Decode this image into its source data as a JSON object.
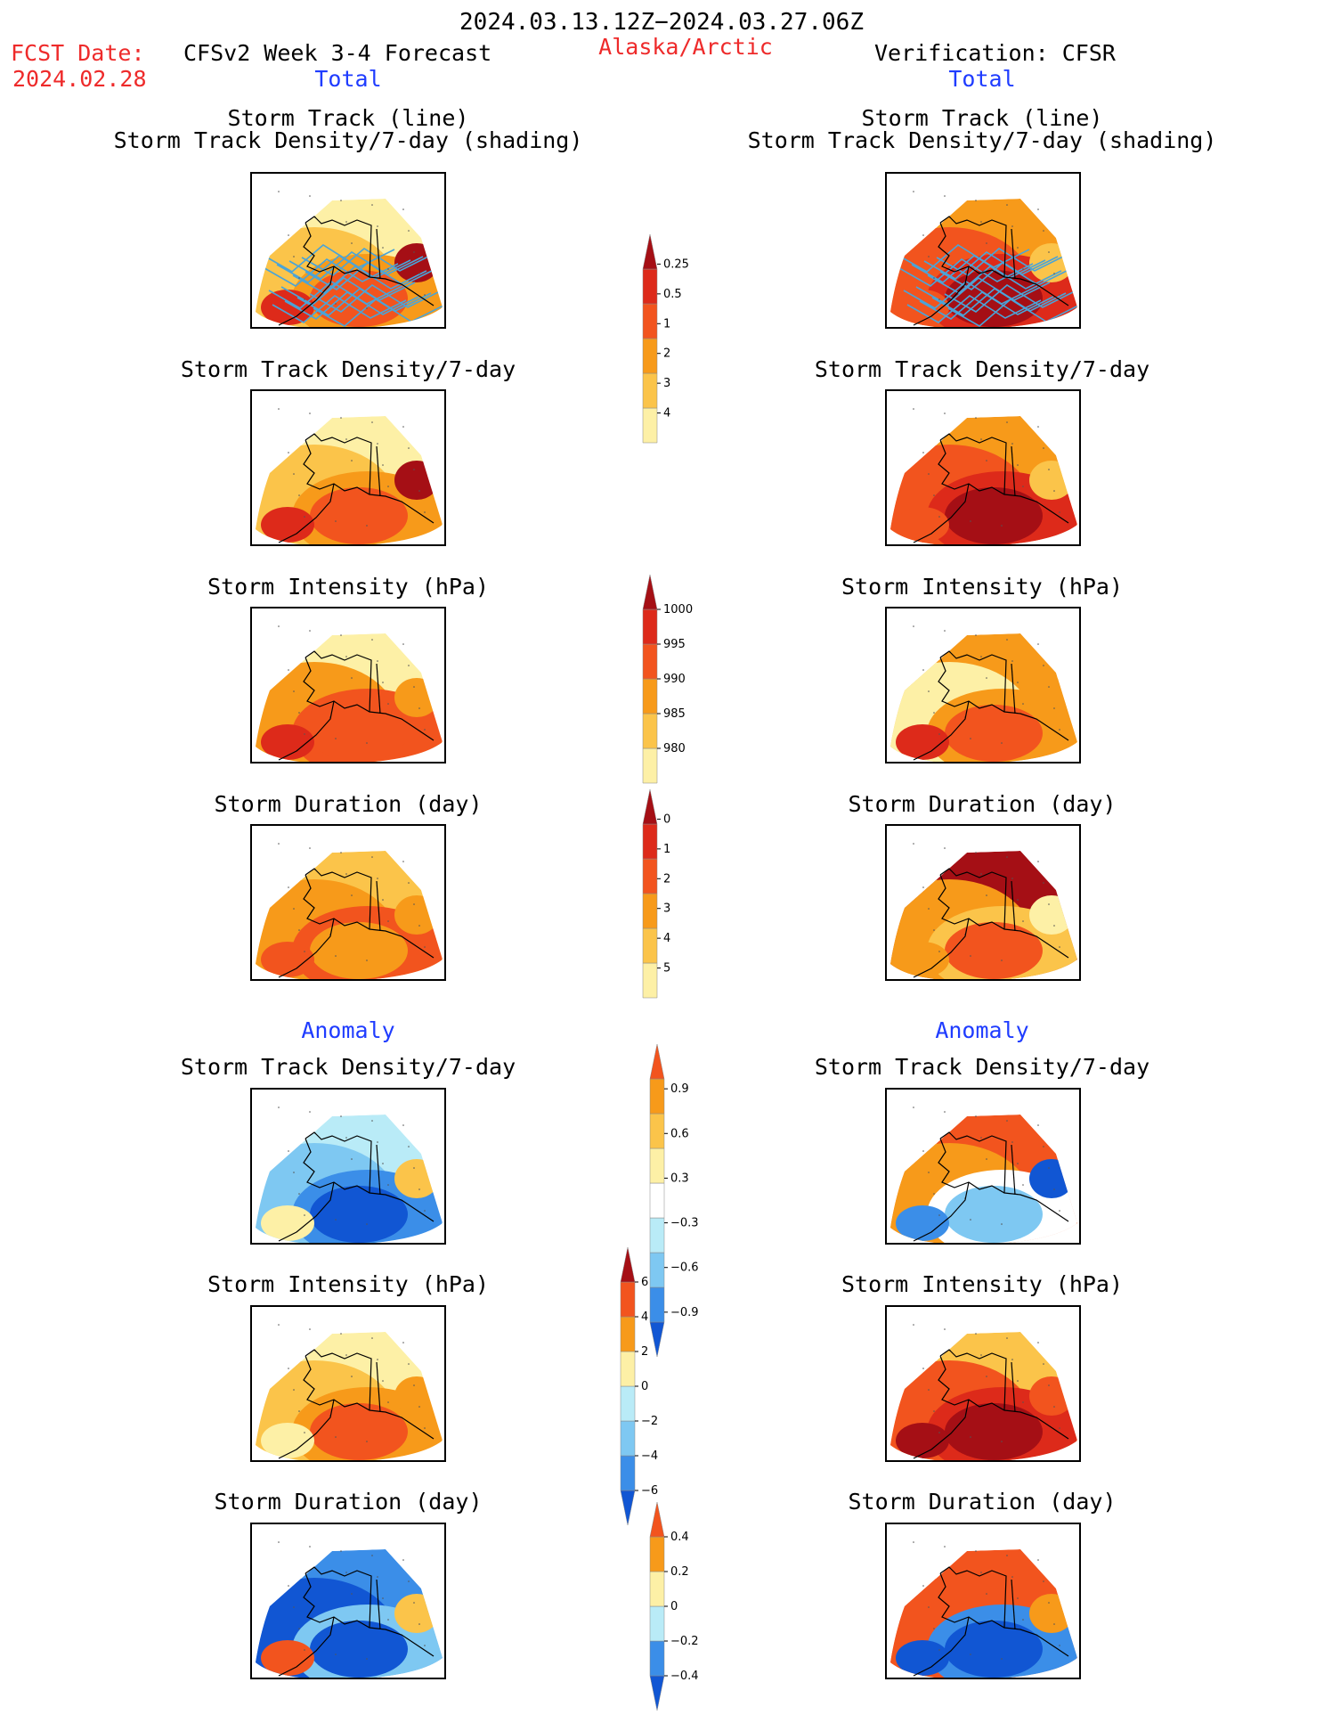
{
  "header": {
    "date_range": "2024.03.13.12Z−2024.03.27.06Z",
    "fcst_date_label": "FCST Date:",
    "fcst_date_value": "2024.02.28",
    "model_title": "CFSv2 Week 3-4 Forecast",
    "region": "Alaska/Arctic",
    "verification": "Verification: CFSR",
    "left_section": "Total",
    "right_section": "Total"
  },
  "labels": {
    "storm_track_line": "Storm Track (line)",
    "storm_track_shading": "Storm Track Density/7-day (shading)",
    "density": "Storm Track Density/7-day",
    "intensity": "Storm Intensity (hPa)",
    "duration": "Storm Duration (day)",
    "anomaly": "Anomaly"
  },
  "colors": {
    "dark_red": "#a50f15",
    "red": "#dd2a1a",
    "red_orange": "#f2541e",
    "orange": "#f79a1a",
    "light_orange": "#fbc44a",
    "yellow": "#fdf0a6",
    "white": "#ffffff",
    "light_blue": "#b9ebf7",
    "sky_blue": "#7ec8f2",
    "blue": "#3b8ee8",
    "dark_blue": "#1156d3",
    "track_line": "#4aa4d8"
  },
  "colorbars": {
    "density": [
      "0.25",
      "0.5",
      "1",
      "2",
      "3",
      "4"
    ],
    "intensity": [
      "1000",
      "995",
      "990",
      "985",
      "980"
    ],
    "duration": [
      "0",
      "1",
      "2",
      "3",
      "4",
      "5"
    ],
    "density_anom": [
      "0.9",
      "0.6",
      "0.3",
      "−0.3",
      "−0.6",
      "−0.9"
    ],
    "intensity_anom": [
      "6",
      "4",
      "2",
      "0",
      "−2",
      "−4",
      "−6"
    ],
    "duration_anom": [
      "0.4",
      "0.2",
      "0",
      "−0.2",
      "−0.4"
    ]
  },
  "panels": [
    {
      "id": "fcst-track",
      "fill": [
        "#fdf0a6",
        "#fbc44a",
        "#f79a1a",
        "#f2541e",
        "#dd2a1a",
        "#a50f15"
      ],
      "tracks": true
    },
    {
      "id": "obs-track",
      "fill": [
        "#f79a1a",
        "#f2541e",
        "#dd2a1a",
        "#a50f15",
        "#f2541e",
        "#fbc44a"
      ],
      "tracks": true
    },
    {
      "id": "fcst-density",
      "fill": [
        "#fdf0a6",
        "#fbc44a",
        "#f79a1a",
        "#f2541e",
        "#dd2a1a",
        "#a50f15"
      ]
    },
    {
      "id": "obs-density",
      "fill": [
        "#f79a1a",
        "#f2541e",
        "#dd2a1a",
        "#a50f15",
        "#f2541e",
        "#fbc44a"
      ]
    },
    {
      "id": "fcst-intensity",
      "fill": [
        "#fdf0a6",
        "#f79a1a",
        "#f2541e",
        "#f2541e",
        "#dd2a1a",
        "#f79a1a"
      ]
    },
    {
      "id": "obs-intensity",
      "fill": [
        "#f79a1a",
        "#fdf0a6",
        "#f79a1a",
        "#f2541e",
        "#dd2a1a",
        "#f79a1a"
      ]
    },
    {
      "id": "fcst-duration",
      "fill": [
        "#fbc44a",
        "#f79a1a",
        "#f2541e",
        "#f79a1a",
        "#f2541e",
        "#f79a1a"
      ]
    },
    {
      "id": "obs-duration",
      "fill": [
        "#a50f15",
        "#f79a1a",
        "#fbc44a",
        "#f2541e",
        "#f79a1a",
        "#fdf0a6"
      ]
    },
    {
      "id": "fcst-density-anom",
      "fill": [
        "#b9ebf7",
        "#7ec8f2",
        "#3b8ee8",
        "#1156d3",
        "#fdf0a6",
        "#fbc44a"
      ]
    },
    {
      "id": "obs-density-anom",
      "fill": [
        "#f2541e",
        "#f79a1a",
        "#ffffff",
        "#7ec8f2",
        "#3b8ee8",
        "#1156d3"
      ]
    },
    {
      "id": "fcst-intensity-anom",
      "fill": [
        "#fdf0a6",
        "#fbc44a",
        "#f79a1a",
        "#f2541e",
        "#fdf0a6",
        "#f79a1a"
      ]
    },
    {
      "id": "obs-intensity-anom",
      "fill": [
        "#fbc44a",
        "#f2541e",
        "#dd2a1a",
        "#a50f15",
        "#a50f15",
        "#f2541e"
      ]
    },
    {
      "id": "fcst-duration-anom",
      "fill": [
        "#3b8ee8",
        "#1156d3",
        "#7ec8f2",
        "#1156d3",
        "#f2541e",
        "#fbc44a"
      ]
    },
    {
      "id": "obs-duration-anom",
      "fill": [
        "#f2541e",
        "#f2541e",
        "#3b8ee8",
        "#1156d3",
        "#1156d3",
        "#f79a1a"
      ]
    }
  ]
}
